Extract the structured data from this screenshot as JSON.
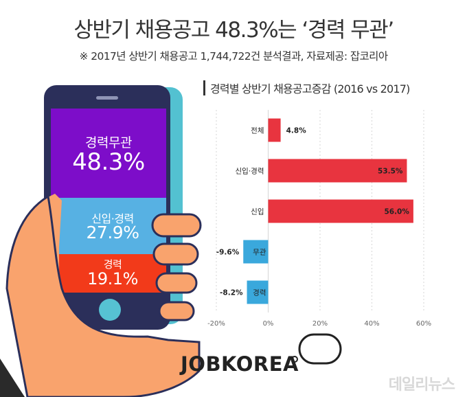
{
  "header": {
    "title": "상반기 채용공고 48.3%는 ‘경력 무관’",
    "subtitle": "※ 2017년 상반기 채용공고 1,744,722건 분석결과,  자료제공: 잡코리아"
  },
  "phone": {
    "segments": [
      {
        "label": "경력무관",
        "value": "48.3%",
        "share": 48.3,
        "color": "#7d0dc9"
      },
      {
        "label": "신입·경력",
        "value": "27.9%",
        "share": 27.9,
        "color": "#57b1e3"
      },
      {
        "label": "경력",
        "value": "19.1%",
        "share": 19.1,
        "color": "#f23a1a"
      }
    ]
  },
  "chart_data": {
    "type": "bar",
    "orientation": "horizontal",
    "title": "경력별 상반기 채용공고증감 (2016 vs 2017)",
    "categories": [
      "전체",
      "신입·경력",
      "신입",
      "무관",
      "경력"
    ],
    "values": [
      4.8,
      53.5,
      56.0,
      -9.6,
      -8.2
    ],
    "value_labels": [
      "4.8%",
      "53.5%",
      "56.0%",
      "-9.6%",
      "-8.2%"
    ],
    "xlim": [
      -20,
      60
    ],
    "xticks": [
      -20,
      0,
      20,
      40,
      60
    ],
    "xtick_labels": [
      "-20%",
      "0%",
      "20%",
      "40%",
      "60%"
    ],
    "grid": true,
    "colors": {
      "positive": "#e8343f",
      "negative": "#3aa8dc"
    }
  },
  "logo": {
    "brand": "JOBKOREA"
  },
  "watermark": {
    "text": "데일리뉴스"
  }
}
